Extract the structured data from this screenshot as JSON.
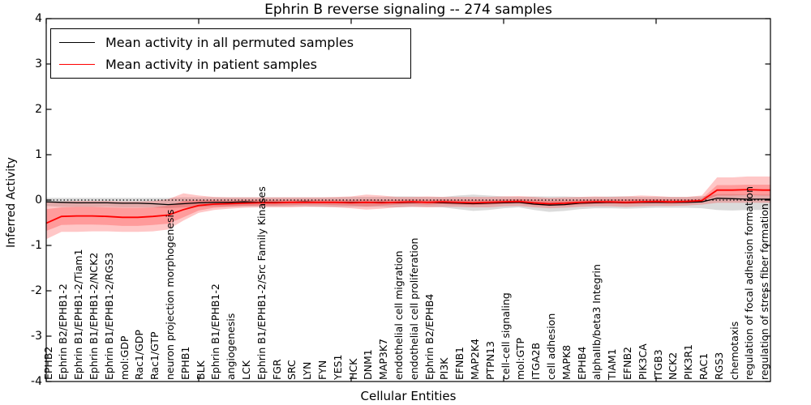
{
  "chart_data": {
    "type": "line",
    "title": "Ephrin B reverse signaling -- 274 samples",
    "xlabel": "Cellular Entities",
    "ylabel": "Inferred Activity",
    "ylim": [
      -4,
      4
    ],
    "yticks": [
      4,
      3,
      2,
      1,
      0,
      -1,
      -2,
      -3,
      -4
    ],
    "grid": false,
    "legend_position": "upper left",
    "zero_reference_line": 0,
    "top_tick_indices": [
      0,
      10,
      20,
      30,
      40
    ],
    "categories": [
      "EPHB2",
      "Ephrin B2/EPHB1-2",
      "Ephrin B1/EPHB1-2/Tiam1",
      "Ephrin B1/EPHB1-2/NCK2",
      "Ephrin B1/EPHB1-2/RGS3",
      "mol:GDP",
      "Rac1/GDP",
      "Rac1/GTP",
      "neuron projection morphogenesis",
      "EPHB1",
      "BLK",
      "Ephrin B1/EPHB1-2",
      "angiogenesis",
      "LCK",
      "Ephrin B1/EPHB1-2/Src Family Kinases",
      "FGR",
      "SRC",
      "LYN",
      "FYN",
      "YES1",
      "HCK",
      "DNM1",
      "MAP3K7",
      "endothelial cell migration",
      "endothelial cell proliferation",
      "Ephrin B2/EPHB4",
      "PI3K",
      "EFNB1",
      "MAP2K4",
      "PTPN13",
      "cell-cell signaling",
      "mol:GTP",
      "ITGA2B",
      "cell adhesion",
      "MAPK8",
      "EPHB4",
      "alphaIIb/beta3 Integrin",
      "TIAM1",
      "EFNB2",
      "PIK3CA",
      "ITGB3",
      "NCK2",
      "PIK3R1",
      "RAC1",
      "RGS3",
      "chemotaxis",
      "regulation of focal adhesion formation",
      "regulation of stress fiber formation"
    ],
    "series": [
      {
        "name": "Mean activity in all permuted samples",
        "color": "#000000",
        "values": [
          -0.04,
          -0.05,
          -0.06,
          -0.06,
          -0.06,
          -0.07,
          -0.07,
          -0.08,
          -0.1,
          -0.08,
          -0.06,
          -0.05,
          -0.05,
          -0.04,
          -0.05,
          -0.05,
          -0.05,
          -0.04,
          -0.05,
          -0.05,
          -0.05,
          -0.05,
          -0.05,
          -0.06,
          -0.05,
          -0.05,
          -0.06,
          -0.07,
          -0.08,
          -0.07,
          -0.06,
          -0.05,
          -0.09,
          -0.11,
          -0.1,
          -0.07,
          -0.06,
          -0.05,
          -0.06,
          -0.05,
          -0.05,
          -0.05,
          -0.05,
          -0.04,
          0.04,
          0.03,
          0.02,
          0.02
        ]
      },
      {
        "name": "Mean activity in patient samples",
        "color": "#ff0000",
        "values": [
          -0.51,
          -0.36,
          -0.35,
          -0.35,
          -0.36,
          -0.38,
          -0.38,
          -0.36,
          -0.33,
          -0.21,
          -0.12,
          -0.09,
          -0.08,
          -0.07,
          -0.06,
          -0.06,
          -0.05,
          -0.05,
          -0.05,
          -0.05,
          -0.06,
          -0.05,
          -0.06,
          -0.05,
          -0.04,
          -0.05,
          -0.04,
          -0.05,
          -0.06,
          -0.05,
          -0.04,
          -0.03,
          -0.06,
          -0.08,
          -0.07,
          -0.05,
          -0.04,
          -0.04,
          -0.05,
          -0.04,
          -0.03,
          -0.04,
          -0.03,
          -0.01,
          0.22,
          0.22,
          0.23,
          0.22
        ]
      }
    ],
    "bands": [
      {
        "name": "permuted-samples-range",
        "color": "rgba(0,0,0,0.14)",
        "upper": [
          0.05,
          0.05,
          0.05,
          0.05,
          0.05,
          0.05,
          0.05,
          0.05,
          0.05,
          0.06,
          0.06,
          0.06,
          0.06,
          0.06,
          0.06,
          0.06,
          0.06,
          0.06,
          0.06,
          0.06,
          0.07,
          0.07,
          0.07,
          0.08,
          0.08,
          0.07,
          0.07,
          0.1,
          0.12,
          0.1,
          0.08,
          0.07,
          0.08,
          0.08,
          0.08,
          0.07,
          0.07,
          0.08,
          0.08,
          0.07,
          0.07,
          0.07,
          0.07,
          0.08,
          0.13,
          0.13,
          0.12,
          0.12
        ],
        "lower": [
          -0.13,
          -0.15,
          -0.15,
          -0.15,
          -0.15,
          -0.16,
          -0.16,
          -0.16,
          -0.18,
          -0.16,
          -0.15,
          -0.14,
          -0.14,
          -0.14,
          -0.14,
          -0.14,
          -0.14,
          -0.14,
          -0.15,
          -0.15,
          -0.15,
          -0.15,
          -0.15,
          -0.16,
          -0.15,
          -0.15,
          -0.16,
          -0.2,
          -0.24,
          -0.22,
          -0.18,
          -0.16,
          -0.22,
          -0.26,
          -0.24,
          -0.2,
          -0.18,
          -0.18,
          -0.19,
          -0.18,
          -0.17,
          -0.17,
          -0.17,
          -0.18,
          -0.22,
          -0.23,
          -0.22,
          -0.22
        ]
      },
      {
        "name": "patient-samples-range-outer",
        "color": "rgba(255,0,0,0.22)",
        "upper": [
          -0.03,
          -0.03,
          -0.02,
          -0.02,
          -0.02,
          -0.03,
          -0.03,
          -0.02,
          0.02,
          0.15,
          0.1,
          0.07,
          0.06,
          0.06,
          0.06,
          0.06,
          0.06,
          0.06,
          0.06,
          0.07,
          0.08,
          0.12,
          0.1,
          0.07,
          0.07,
          0.08,
          0.07,
          0.07,
          0.07,
          0.07,
          0.08,
          0.09,
          0.07,
          0.05,
          0.06,
          0.07,
          0.08,
          0.07,
          0.08,
          0.1,
          0.09,
          0.07,
          0.07,
          0.1,
          0.5,
          0.5,
          0.52,
          0.52
        ],
        "lower": [
          -0.86,
          -0.7,
          -0.7,
          -0.69,
          -0.69,
          -0.7,
          -0.7,
          -0.69,
          -0.65,
          -0.45,
          -0.28,
          -0.22,
          -0.19,
          -0.17,
          -0.16,
          -0.16,
          -0.16,
          -0.15,
          -0.15,
          -0.16,
          -0.18,
          -0.21,
          -0.19,
          -0.16,
          -0.15,
          -0.16,
          -0.15,
          -0.15,
          -0.16,
          -0.16,
          -0.14,
          -0.13,
          -0.16,
          -0.18,
          -0.17,
          -0.15,
          -0.14,
          -0.14,
          -0.15,
          -0.14,
          -0.13,
          -0.13,
          -0.12,
          -0.1,
          -0.06,
          -0.06,
          -0.06,
          -0.06
        ]
      },
      {
        "name": "patient-samples-range-inner",
        "color": "rgba(255,0,0,0.22)",
        "upper": [
          -0.2,
          -0.16,
          -0.15,
          -0.15,
          -0.16,
          -0.17,
          -0.17,
          -0.16,
          -0.12,
          -0.02,
          0.0,
          0.0,
          -0.01,
          0.0,
          0.0,
          0.0,
          0.0,
          0.0,
          0.0,
          0.0,
          0.0,
          0.01,
          0.0,
          0.0,
          0.01,
          0.0,
          0.01,
          0.0,
          0.0,
          0.0,
          0.01,
          0.02,
          0.0,
          -0.02,
          -0.01,
          0.0,
          0.01,
          0.01,
          0.01,
          0.02,
          0.02,
          0.01,
          0.01,
          0.03,
          0.33,
          0.33,
          0.34,
          0.34
        ],
        "lower": [
          -0.68,
          -0.55,
          -0.54,
          -0.54,
          -0.55,
          -0.57,
          -0.57,
          -0.55,
          -0.52,
          -0.38,
          -0.23,
          -0.17,
          -0.15,
          -0.13,
          -0.12,
          -0.12,
          -0.11,
          -0.1,
          -0.1,
          -0.11,
          -0.12,
          -0.14,
          -0.12,
          -0.1,
          -0.09,
          -0.1,
          -0.09,
          -0.1,
          -0.11,
          -0.1,
          -0.08,
          -0.07,
          -0.11,
          -0.13,
          -0.12,
          -0.1,
          -0.08,
          -0.08,
          -0.09,
          -0.08,
          -0.07,
          -0.08,
          -0.06,
          -0.04,
          0.1,
          0.1,
          0.11,
          0.1
        ]
      }
    ]
  }
}
